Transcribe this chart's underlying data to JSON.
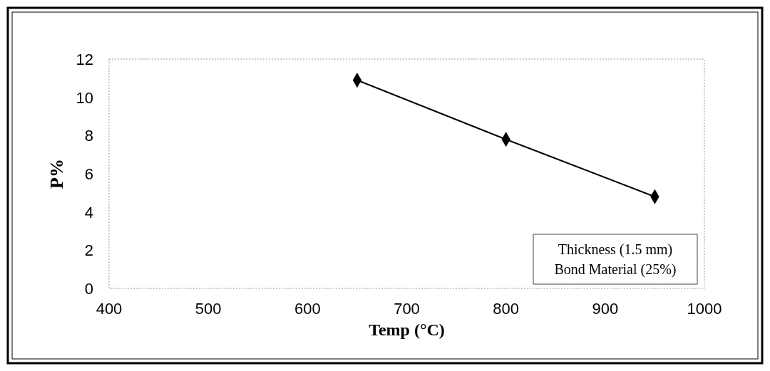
{
  "chart_data": {
    "type": "line",
    "xlabel": "Temp (°C)",
    "ylabel": "P%",
    "x": [
      650,
      800,
      950
    ],
    "series": [
      {
        "color": "#000000",
        "values": [
          10.9,
          7.8,
          4.8
        ]
      }
    ],
    "xlim": [
      400,
      1000
    ],
    "xticks": [
      400,
      500,
      600,
      700,
      800,
      900,
      1000
    ],
    "ylim": [
      0,
      12
    ],
    "yticks": [
      0,
      2,
      4,
      6,
      8,
      10,
      12
    ],
    "marker": "diamond",
    "line_style": "solid",
    "grid": false,
    "annotations": [
      "Thickness (1.5 mm)",
      "Bond Material (25%)"
    ]
  }
}
